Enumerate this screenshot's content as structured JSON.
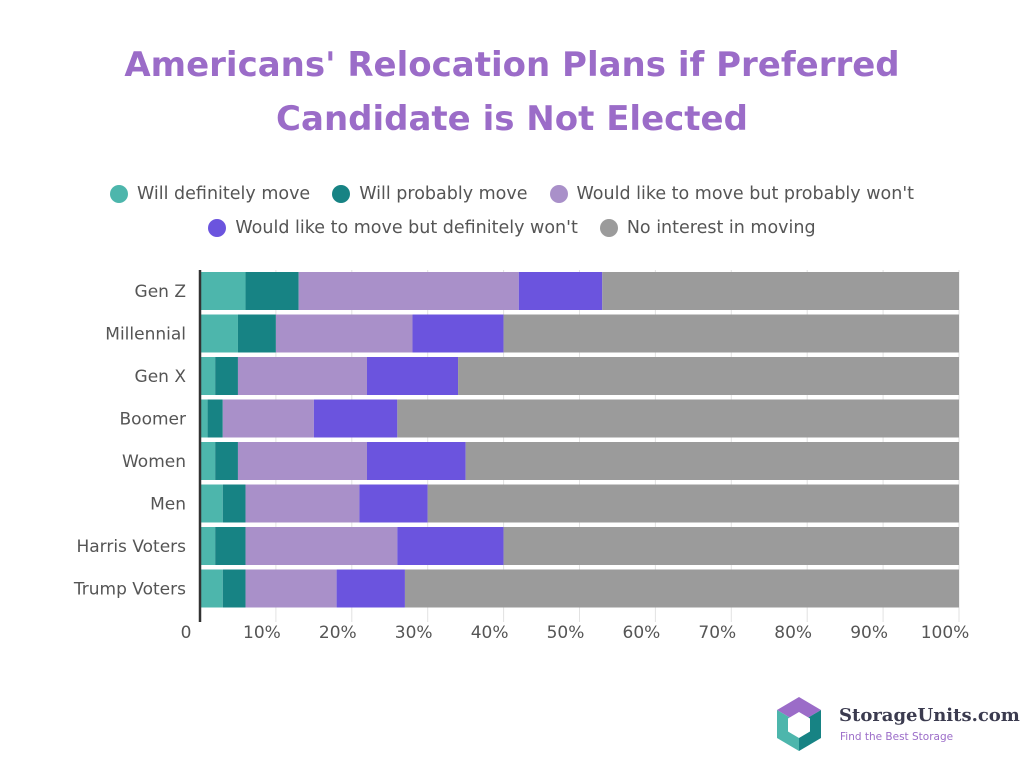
{
  "brand": {
    "name": "StorageUnits.com",
    "tagline": "Find the Best Storage"
  },
  "chart_data": {
    "type": "bar",
    "orientation": "horizontal",
    "stacked": true,
    "title_lines": [
      "Americans' Relocation Plans if Preferred",
      "Candidate is Not Elected"
    ],
    "xlabel": "",
    "ylabel": "",
    "xlim": [
      0,
      100
    ],
    "x_ticks": [
      "0",
      "10%",
      "20%",
      "30%",
      "40%",
      "50%",
      "60%",
      "70%",
      "80%",
      "90%",
      "100%"
    ],
    "grid": true,
    "legend_position": "top",
    "categories": [
      "Gen Z",
      "Millennial",
      "Gen X",
      "Boomer",
      "Women",
      "Men",
      "Harris Voters",
      "Trump Voters"
    ],
    "series": [
      {
        "name": "Will definitely move",
        "color": "#4db6ac",
        "values": [
          6,
          5,
          2,
          1,
          2,
          3,
          2,
          3
        ]
      },
      {
        "name": "Will probably move",
        "color": "#178384",
        "values": [
          7,
          5,
          3,
          2,
          3,
          3,
          4,
          3
        ]
      },
      {
        "name": "Would like to move but probably won't",
        "color": "#a990c9",
        "values": [
          29,
          18,
          17,
          12,
          17,
          15,
          20,
          12
        ]
      },
      {
        "name": "Would like to move but definitely won't",
        "color": "#6b54de",
        "values": [
          11,
          12,
          12,
          11,
          13,
          9,
          14,
          9
        ]
      },
      {
        "name": "No interest in moving",
        "color": "#9b9b9b",
        "values": [
          47,
          60,
          66,
          74,
          65,
          70,
          60,
          73
        ]
      }
    ]
  }
}
